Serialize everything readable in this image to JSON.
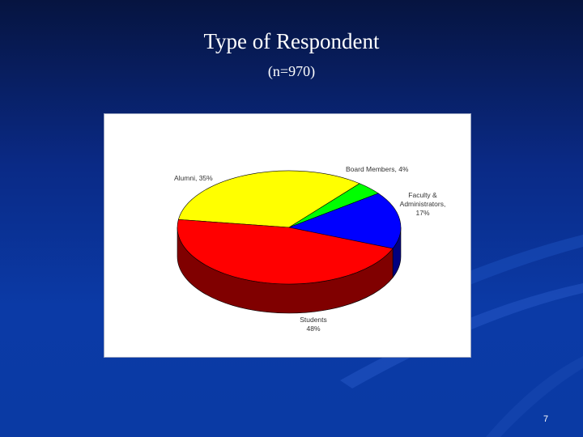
{
  "slide": {
    "title": "Type of Respondent",
    "subtitle": "(n=970)",
    "page_number": "7"
  },
  "chart_data": {
    "type": "pie",
    "three_d": true,
    "categories": [
      "Alumni",
      "Board Members",
      "Faculty & Administrators",
      "Students"
    ],
    "values": [
      35,
      4,
      17,
      48
    ],
    "data_labels": [
      [
        "Alumni, 35%"
      ],
      [
        "Board Members, 4%"
      ],
      [
        "Faculty &",
        "Administrators,",
        "17%"
      ],
      [
        "Students",
        "48%"
      ]
    ],
    "colors": [
      "#ffff00",
      "#00ff00",
      "#0000ff",
      "#ff0000"
    ],
    "side_colors": [
      "#9a9a00",
      "#009000",
      "#000080",
      "#800000"
    ]
  }
}
